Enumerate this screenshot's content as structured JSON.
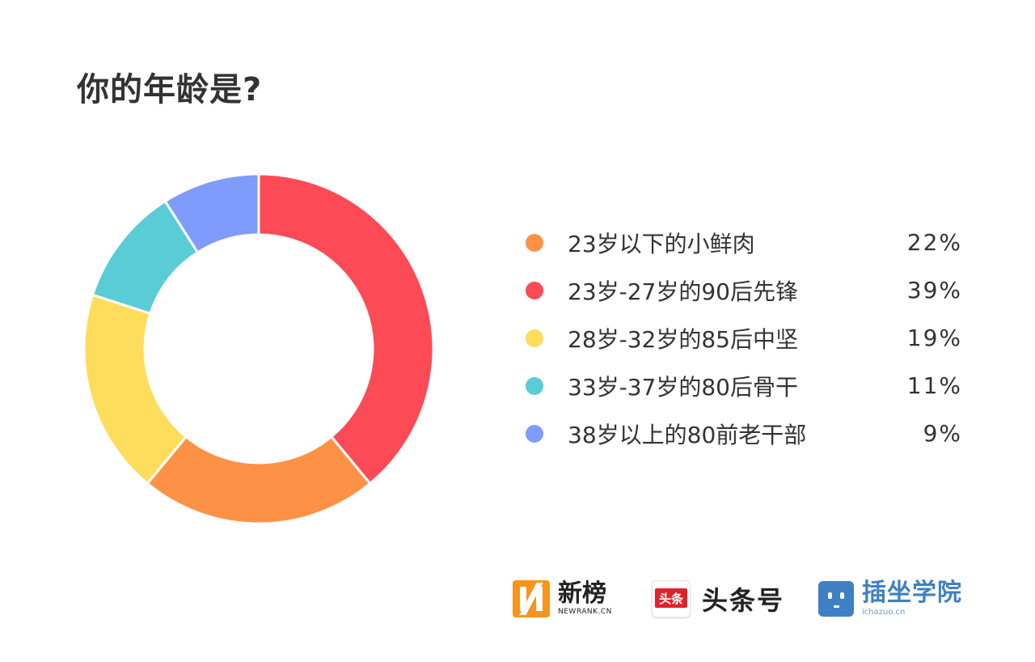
{
  "chart_data": {
    "type": "pie",
    "title": "你的年龄是?",
    "categories": [
      "23岁以下的小鲜肉",
      "23岁-27岁的90后先锋",
      "28岁-32岁的85后中坚",
      "33岁-37岁的80后骨干",
      "38岁以上的80前老干部"
    ],
    "values": [
      22,
      39,
      19,
      11,
      9
    ],
    "value_labels": [
      "22%",
      "39%",
      "19%",
      "11%",
      "9%"
    ],
    "colors": [
      "#fd9246",
      "#fc4a56",
      "#fedd5c",
      "#59ccd6",
      "#7f9bfb"
    ],
    "slice_order_clockwise_from_top": [
      1,
      0,
      2,
      3,
      4
    ],
    "donut": true,
    "legend_position": "right"
  },
  "logos": {
    "newrank": {
      "name": "新榜",
      "sub": "NEWRANK.CN"
    },
    "toutiao": {
      "badge": "头条",
      "name": "头条号"
    },
    "chazuo": {
      "name": "插坐学院",
      "sub": "ichazuo.cn"
    }
  }
}
